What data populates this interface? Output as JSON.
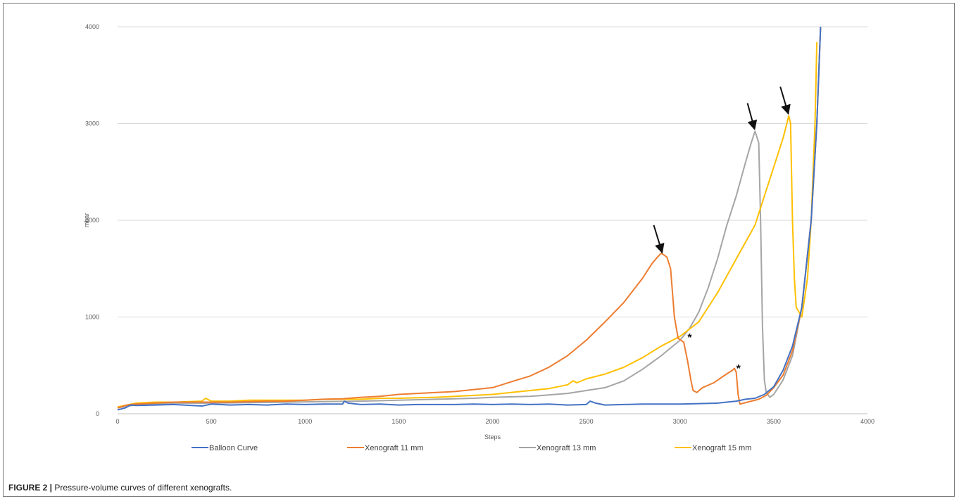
{
  "caption": {
    "label": "FIGURE 2 |",
    "text": " Pressure-volume curves of different xenografts."
  },
  "chart_data": {
    "type": "line",
    "title": "",
    "xlabel": "Steps",
    "ylabel": "mbar",
    "xlim": [
      0,
      4000
    ],
    "ylim": [
      0,
      4000
    ],
    "xticks": [
      0,
      500,
      1000,
      1500,
      2000,
      2500,
      3000,
      3500,
      4000
    ],
    "yticks": [
      0,
      1000,
      2000,
      3000,
      4000
    ],
    "grid": "horizontal",
    "legend_position": "bottom",
    "series": [
      {
        "name": "Balloon Curve",
        "color": "#4472C4",
        "points": [
          [
            0,
            40
          ],
          [
            40,
            60
          ],
          [
            70,
            90
          ],
          [
            100,
            85
          ],
          [
            200,
            90
          ],
          [
            300,
            95
          ],
          [
            450,
            80
          ],
          [
            500,
            100
          ],
          [
            600,
            90
          ],
          [
            700,
            95
          ],
          [
            800,
            90
          ],
          [
            900,
            100
          ],
          [
            1000,
            95
          ],
          [
            1100,
            100
          ],
          [
            1200,
            100
          ],
          [
            1210,
            130
          ],
          [
            1230,
            110
          ],
          [
            1300,
            95
          ],
          [
            1400,
            100
          ],
          [
            1500,
            90
          ],
          [
            1600,
            95
          ],
          [
            1700,
            95
          ],
          [
            1800,
            95
          ],
          [
            1900,
            100
          ],
          [
            2000,
            95
          ],
          [
            2100,
            100
          ],
          [
            2200,
            95
          ],
          [
            2300,
            100
          ],
          [
            2400,
            90
          ],
          [
            2500,
            95
          ],
          [
            2520,
            130
          ],
          [
            2550,
            110
          ],
          [
            2600,
            90
          ],
          [
            2700,
            95
          ],
          [
            2800,
            100
          ],
          [
            2900,
            100
          ],
          [
            3000,
            100
          ],
          [
            3100,
            105
          ],
          [
            3200,
            110
          ],
          [
            3300,
            130
          ],
          [
            3350,
            150
          ],
          [
            3400,
            160
          ],
          [
            3450,
            200
          ],
          [
            3500,
            280
          ],
          [
            3550,
            450
          ],
          [
            3600,
            700
          ],
          [
            3650,
            1100
          ],
          [
            3700,
            2000
          ],
          [
            3730,
            3000
          ],
          [
            3750,
            4000
          ]
        ]
      },
      {
        "name": "Xenograft 11 mm",
        "color": "#ED7D31",
        "points": [
          [
            0,
            60
          ],
          [
            50,
            90
          ],
          [
            100,
            100
          ],
          [
            200,
            110
          ],
          [
            300,
            120
          ],
          [
            400,
            120
          ],
          [
            500,
            120
          ],
          [
            600,
            120
          ],
          [
            700,
            125
          ],
          [
            800,
            130
          ],
          [
            900,
            130
          ],
          [
            1000,
            140
          ],
          [
            1100,
            150
          ],
          [
            1200,
            155
          ],
          [
            1300,
            170
          ],
          [
            1400,
            180
          ],
          [
            1500,
            200
          ],
          [
            1600,
            210
          ],
          [
            1700,
            220
          ],
          [
            1800,
            230
          ],
          [
            1900,
            250
          ],
          [
            2000,
            270
          ],
          [
            2050,
            300
          ],
          [
            2100,
            330
          ],
          [
            2200,
            390
          ],
          [
            2300,
            480
          ],
          [
            2400,
            600
          ],
          [
            2500,
            760
          ],
          [
            2600,
            950
          ],
          [
            2700,
            1150
          ],
          [
            2800,
            1400
          ],
          [
            2850,
            1550
          ],
          [
            2880,
            1620
          ],
          [
            2900,
            1660
          ],
          [
            2930,
            1620
          ],
          [
            2950,
            1500
          ],
          [
            2970,
            1000
          ],
          [
            2990,
            780
          ],
          [
            3020,
            740
          ],
          [
            3040,
            550
          ],
          [
            3060,
            330
          ],
          [
            3070,
            240
          ],
          [
            3090,
            220
          ],
          [
            3120,
            270
          ],
          [
            3180,
            320
          ],
          [
            3240,
            400
          ],
          [
            3280,
            450
          ],
          [
            3290,
            470
          ],
          [
            3300,
            430
          ],
          [
            3310,
            200
          ],
          [
            3320,
            100
          ],
          [
            3340,
            110
          ],
          [
            3380,
            130
          ],
          [
            3420,
            150
          ],
          [
            3460,
            190
          ],
          [
            3500,
            270
          ],
          [
            3550,
            400
          ],
          [
            3600,
            650
          ],
          [
            3650,
            1100
          ],
          [
            3700,
            2000
          ],
          [
            3730,
            3000
          ],
          [
            3750,
            4000
          ]
        ]
      },
      {
        "name": "Xenograft 13 mm",
        "color": "#A5A5A5",
        "points": [
          [
            0,
            60
          ],
          [
            50,
            80
          ],
          [
            100,
            90
          ],
          [
            200,
            100
          ],
          [
            300,
            110
          ],
          [
            500,
            110
          ],
          [
            700,
            115
          ],
          [
            900,
            120
          ],
          [
            1100,
            125
          ],
          [
            1300,
            130
          ],
          [
            1500,
            140
          ],
          [
            1700,
            150
          ],
          [
            1900,
            160
          ],
          [
            2000,
            170
          ],
          [
            2200,
            180
          ],
          [
            2400,
            210
          ],
          [
            2500,
            240
          ],
          [
            2600,
            270
          ],
          [
            2700,
            340
          ],
          [
            2800,
            460
          ],
          [
            2900,
            600
          ],
          [
            3000,
            760
          ],
          [
            3050,
            880
          ],
          [
            3100,
            1050
          ],
          [
            3150,
            1300
          ],
          [
            3200,
            1600
          ],
          [
            3250,
            1950
          ],
          [
            3300,
            2250
          ],
          [
            3350,
            2600
          ],
          [
            3380,
            2800
          ],
          [
            3400,
            2920
          ],
          [
            3420,
            2800
          ],
          [
            3430,
            2000
          ],
          [
            3440,
            900
          ],
          [
            3450,
            350
          ],
          [
            3460,
            220
          ],
          [
            3480,
            170
          ],
          [
            3500,
            200
          ],
          [
            3550,
            350
          ],
          [
            3600,
            600
          ],
          [
            3650,
            1100
          ],
          [
            3700,
            2000
          ],
          [
            3730,
            3000
          ],
          [
            3750,
            4000
          ]
        ]
      },
      {
        "name": "Xenograft 15 mm",
        "color": "#FFC000",
        "points": [
          [
            0,
            70
          ],
          [
            50,
            90
          ],
          [
            100,
            110
          ],
          [
            200,
            120
          ],
          [
            300,
            120
          ],
          [
            450,
            130
          ],
          [
            470,
            160
          ],
          [
            500,
            130
          ],
          [
            600,
            130
          ],
          [
            700,
            140
          ],
          [
            800,
            140
          ],
          [
            900,
            140
          ],
          [
            1000,
            140
          ],
          [
            1100,
            150
          ],
          [
            1200,
            150
          ],
          [
            1300,
            150
          ],
          [
            1400,
            160
          ],
          [
            1500,
            160
          ],
          [
            1600,
            165
          ],
          [
            1700,
            170
          ],
          [
            1800,
            180
          ],
          [
            1900,
            190
          ],
          [
            2000,
            200
          ],
          [
            2100,
            220
          ],
          [
            2200,
            240
          ],
          [
            2300,
            260
          ],
          [
            2400,
            300
          ],
          [
            2430,
            340
          ],
          [
            2450,
            320
          ],
          [
            2500,
            360
          ],
          [
            2600,
            410
          ],
          [
            2700,
            480
          ],
          [
            2800,
            580
          ],
          [
            2900,
            700
          ],
          [
            3000,
            800
          ],
          [
            3100,
            950
          ],
          [
            3200,
            1250
          ],
          [
            3300,
            1600
          ],
          [
            3400,
            1950
          ],
          [
            3450,
            2250
          ],
          [
            3500,
            2550
          ],
          [
            3550,
            2850
          ],
          [
            3570,
            3000
          ],
          [
            3580,
            3080
          ],
          [
            3590,
            3000
          ],
          [
            3600,
            2000
          ],
          [
            3610,
            1400
          ],
          [
            3620,
            1100
          ],
          [
            3650,
            1000
          ],
          [
            3680,
            1400
          ],
          [
            3700,
            2000
          ],
          [
            3720,
            3000
          ],
          [
            3730,
            3840
          ]
        ]
      }
    ],
    "annotations": [
      {
        "type": "arrow",
        "tip": [
          2905,
          1665
        ],
        "tail": [
          2860,
          1950
        ]
      },
      {
        "type": "arrow",
        "tip": [
          3398,
          2940
        ],
        "tail": [
          3360,
          3210
        ]
      },
      {
        "type": "arrow",
        "tip": [
          3578,
          3100
        ],
        "tail": [
          3535,
          3380
        ]
      },
      {
        "type": "text",
        "text": "*",
        "x": 3040,
        "y": 750
      },
      {
        "type": "text",
        "text": "*",
        "x": 3300,
        "y": 430
      }
    ]
  }
}
